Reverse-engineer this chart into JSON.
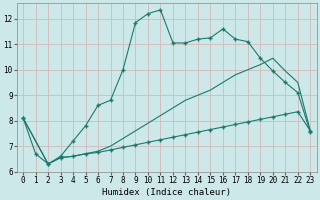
{
  "xlabel": "Humidex (Indice chaleur)",
  "bg_color": "#cce8e8",
  "grid_color": "#b0d0d0",
  "line_color": "#1a7a6e",
  "xlim": [
    -0.5,
    23.5
  ],
  "ylim": [
    6.0,
    12.6
  ],
  "yticks": [
    6,
    7,
    8,
    9,
    10,
    11,
    12
  ],
  "xticks": [
    0,
    1,
    2,
    3,
    4,
    5,
    6,
    7,
    8,
    9,
    10,
    11,
    12,
    13,
    14,
    15,
    16,
    17,
    18,
    19,
    20,
    21,
    22,
    23
  ],
  "line1_x": [
    0,
    1,
    2,
    3,
    4,
    5,
    6,
    7,
    8,
    9,
    10,
    11,
    12,
    13,
    14,
    15,
    16,
    17,
    18,
    19,
    20,
    21,
    22,
    23
  ],
  "line1_y": [
    8.1,
    6.7,
    6.3,
    6.6,
    7.2,
    7.8,
    8.6,
    8.8,
    10.0,
    11.85,
    12.2,
    12.35,
    11.05,
    11.05,
    11.2,
    11.25,
    11.6,
    11.2,
    11.1,
    10.45,
    9.95,
    9.5,
    9.1,
    7.55
  ],
  "line2_x": [
    0,
    2,
    3,
    4,
    5,
    6,
    7,
    8,
    9,
    10,
    11,
    12,
    13,
    14,
    15,
    16,
    17,
    18,
    19,
    20,
    21,
    22,
    23
  ],
  "line2_y": [
    8.1,
    6.3,
    6.55,
    6.6,
    6.7,
    6.75,
    6.85,
    6.95,
    7.05,
    7.15,
    7.25,
    7.35,
    7.45,
    7.55,
    7.65,
    7.75,
    7.85,
    7.95,
    8.05,
    8.15,
    8.25,
    8.35,
    7.6
  ],
  "line3_x": [
    0,
    2,
    3,
    4,
    5,
    6,
    7,
    8,
    9,
    10,
    11,
    12,
    13,
    14,
    15,
    16,
    17,
    18,
    19,
    20,
    21,
    22,
    23
  ],
  "line3_y": [
    8.1,
    6.3,
    6.55,
    6.6,
    6.7,
    6.8,
    7.0,
    7.3,
    7.6,
    7.9,
    8.2,
    8.5,
    8.8,
    9.0,
    9.2,
    9.5,
    9.8,
    10.0,
    10.2,
    10.45,
    9.95,
    9.5,
    7.6
  ]
}
